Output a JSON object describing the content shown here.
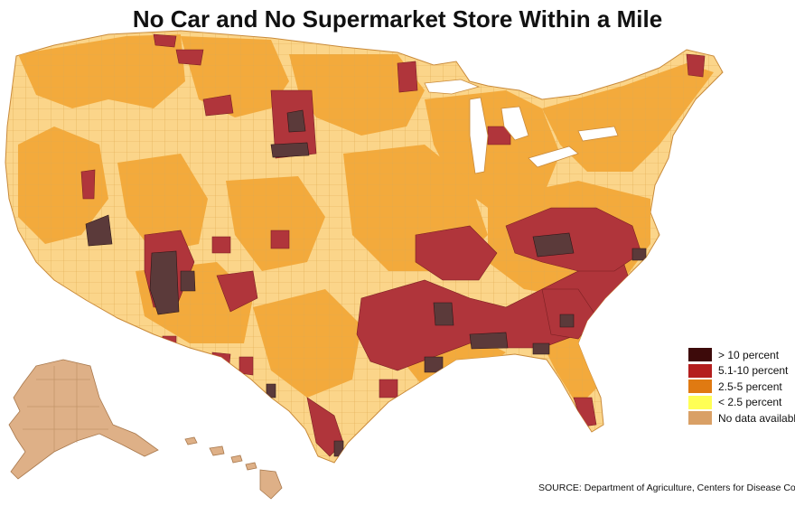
{
  "title": "No Car and No Supermarket Store Within a Mile",
  "legend": {
    "items": [
      {
        "label": "> 10 percent",
        "color": "#3d0a0a"
      },
      {
        "label": "5.1-10 percent",
        "color": "#b41e1e"
      },
      {
        "label": "2.5-5 percent",
        "color": "#e07a12"
      },
      {
        "label": "< 2.5 percent",
        "color": "#ffff55"
      },
      {
        "label": "No data available",
        "color": "#d9a066"
      }
    ]
  },
  "map_colors": {
    "low": "#fbd58a",
    "mid": "#f3aa3c",
    "high": "#b0353b",
    "very_high": "#5b3a3a",
    "borders": "#d9a35a",
    "alaska_hawaii": "#deb087"
  },
  "source": "SOURCE: Department of Agriculture, Centers for Disease Control"
}
